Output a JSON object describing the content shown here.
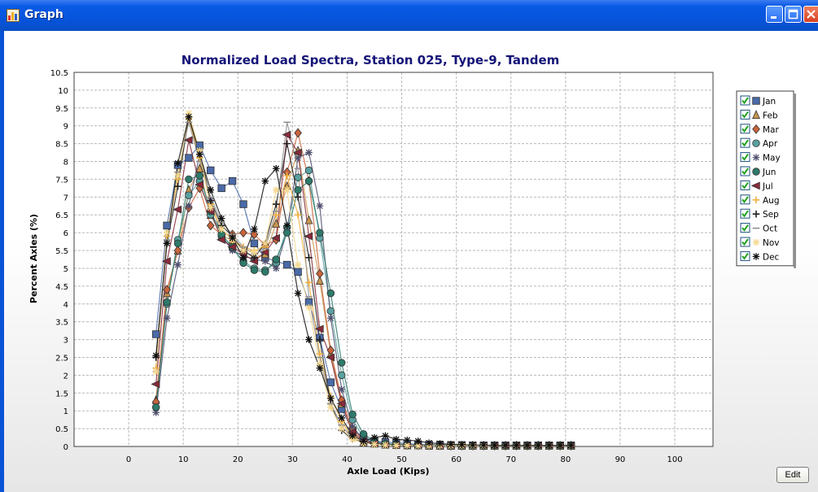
{
  "window": {
    "title": "Graph",
    "icons": [
      "chart-app-icon",
      "minimize-icon",
      "maximize-icon",
      "close-icon"
    ]
  },
  "edit_button_label": "Edit",
  "chart_data": {
    "type": "line",
    "title": "Normalized Load Spectra, Station 025, Type-9, Tandem",
    "xlabel": "Axle Load (Kips)",
    "ylabel": "Percent Axles (%)",
    "xlim": [
      -10,
      107
    ],
    "ylim": [
      0,
      10.5
    ],
    "xticks": [
      0,
      10,
      20,
      30,
      40,
      50,
      60,
      70,
      80,
      90,
      100
    ],
    "yticks": [
      0,
      0.5,
      1,
      1.5,
      2,
      2.5,
      3,
      3.5,
      4,
      4.5,
      5,
      5.5,
      6,
      6.5,
      7,
      7.5,
      8,
      8.5,
      9,
      9.5,
      10,
      10.5
    ],
    "grid": true,
    "legend_position": "right",
    "x": [
      5,
      7,
      9,
      11,
      13,
      15,
      17,
      19,
      21,
      23,
      25,
      27,
      29,
      31,
      33,
      35,
      37,
      39,
      41,
      43,
      45,
      47,
      49,
      51,
      53,
      55,
      57,
      59,
      61,
      63,
      65,
      67,
      69,
      71,
      73,
      75,
      77,
      79,
      81
    ],
    "series": [
      {
        "name": "Jan",
        "color": "#4a6aa8",
        "marker": "square",
        "values": [
          3.15,
          6.2,
          7.9,
          8.1,
          8.45,
          7.75,
          7.25,
          7.45,
          6.8,
          5.7,
          5.3,
          5.2,
          5.1,
          4.9,
          4.05,
          3.05,
          1.8,
          1.05,
          0.45,
          0.25,
          0.15,
          0.12,
          0.1,
          0.08,
          0.06,
          0.05,
          0.05,
          0.04,
          0.04,
          0.03,
          0.03,
          0.03,
          0.03,
          0.03,
          0.03,
          0.03,
          0.03,
          0.03,
          0.03
        ]
      },
      {
        "name": "Feb",
        "color": "#c89650",
        "marker": "triangle",
        "values": [
          1.3,
          4.3,
          5.5,
          7.2,
          7.8,
          6.5,
          5.9,
          5.8,
          5.5,
          5.3,
          5.4,
          6.25,
          7.3,
          8.3,
          6.35,
          4.65,
          2.6,
          1.2,
          0.35,
          0.12,
          0.08,
          0.05,
          0.04,
          0.03,
          0.03,
          0.02,
          0.02,
          0.02,
          0.02,
          0.02,
          0.02,
          0.02,
          0.02,
          0.02,
          0.02,
          0.02,
          0.02,
          0.02,
          0.02
        ]
      },
      {
        "name": "Mar",
        "color": "#c8643c",
        "marker": "diamond",
        "values": [
          1.25,
          4.4,
          5.5,
          6.7,
          7.25,
          6.2,
          5.95,
          5.95,
          6.0,
          5.95,
          5.65,
          5.8,
          7.7,
          8.8,
          7.45,
          4.85,
          2.7,
          1.3,
          0.5,
          0.15,
          0.1,
          0.06,
          0.05,
          0.04,
          0.03,
          0.03,
          0.03,
          0.02,
          0.02,
          0.02,
          0.02,
          0.02,
          0.02,
          0.02,
          0.02,
          0.02,
          0.02,
          0.02,
          0.02
        ]
      },
      {
        "name": "Apr",
        "color": "#5aa0a0",
        "marker": "circle",
        "values": [
          1.1,
          4.0,
          5.8,
          7.05,
          7.45,
          6.5,
          5.9,
          5.55,
          5.2,
          5.0,
          4.95,
          5.15,
          6.15,
          7.55,
          7.75,
          5.85,
          3.8,
          2.0,
          0.75,
          0.25,
          0.1,
          0.07,
          0.05,
          0.04,
          0.03,
          0.03,
          0.03,
          0.03,
          0.02,
          0.02,
          0.02,
          0.02,
          0.02,
          0.02,
          0.02,
          0.02,
          0.02,
          0.02,
          0.02
        ]
      },
      {
        "name": "May",
        "color": "#505070",
        "marker": "asterisk",
        "values": [
          0.95,
          3.6,
          5.1,
          6.75,
          8.2,
          6.9,
          5.9,
          5.5,
          5.35,
          5.25,
          5.2,
          5.0,
          6.05,
          8.1,
          8.25,
          6.75,
          3.6,
          1.6,
          0.55,
          0.2,
          0.1,
          0.06,
          0.05,
          0.04,
          0.03,
          0.03,
          0.03,
          0.02,
          0.02,
          0.02,
          0.02,
          0.02,
          0.02,
          0.02,
          0.02,
          0.02,
          0.02,
          0.02,
          0.02
        ]
      },
      {
        "name": "Jun",
        "color": "#2e7a6a",
        "marker": "circle",
        "values": [
          1.1,
          4.05,
          5.7,
          7.5,
          7.6,
          6.6,
          5.95,
          5.6,
          5.15,
          4.95,
          4.9,
          5.25,
          6.0,
          7.2,
          7.45,
          6.0,
          4.3,
          2.35,
          0.9,
          0.35,
          0.15,
          0.08,
          0.06,
          0.04,
          0.04,
          0.03,
          0.03,
          0.03,
          0.02,
          0.02,
          0.02,
          0.02,
          0.02,
          0.02,
          0.02,
          0.02,
          0.02,
          0.02,
          0.02
        ]
      },
      {
        "name": "Jul",
        "color": "#8a2a3a",
        "marker": "triangle-left",
        "values": [
          1.75,
          5.2,
          6.65,
          8.6,
          7.35,
          6.6,
          5.8,
          5.6,
          5.4,
          5.2,
          5.45,
          5.85,
          8.75,
          8.25,
          5.9,
          3.3,
          2.5,
          1.2,
          0.4,
          0.15,
          0.08,
          0.05,
          0.04,
          0.03,
          0.03,
          0.02,
          0.02,
          0.02,
          0.02,
          0.02,
          0.02,
          0.02,
          0.02,
          0.02,
          0.02,
          0.02,
          0.02,
          0.02,
          0.02
        ]
      },
      {
        "name": "Aug",
        "color": "#f0b040",
        "marker": "plus",
        "values": [
          2.2,
          5.9,
          7.5,
          9.2,
          8.1,
          6.8,
          6.1,
          5.8,
          5.6,
          5.5,
          5.6,
          6.5,
          7.6,
          6.5,
          4.6,
          2.6,
          1.4,
          0.7,
          0.25,
          0.1,
          0.06,
          0.04,
          0.03,
          0.03,
          0.02,
          0.02,
          0.02,
          0.02,
          0.02,
          0.02,
          0.02,
          0.02,
          0.02,
          0.02,
          0.02,
          0.02,
          0.02,
          0.02,
          0.02
        ]
      },
      {
        "name": "Sep",
        "color": "#202020",
        "marker": "plus",
        "values": [
          2.5,
          5.7,
          7.3,
          9.25,
          8.3,
          6.9,
          6.2,
          5.9,
          5.5,
          5.3,
          5.7,
          6.8,
          8.5,
          7.0,
          5.3,
          3.0,
          1.2,
          0.45,
          0.2,
          0.12,
          0.07,
          0.05,
          0.04,
          0.03,
          0.03,
          0.03,
          0.02,
          0.02,
          0.02,
          0.02,
          0.02,
          0.02,
          0.02,
          0.02,
          0.02,
          0.02,
          0.02,
          0.02,
          0.02
        ]
      },
      {
        "name": "Oct",
        "color": "#909090",
        "marker": "dash",
        "values": [
          2.1,
          5.8,
          7.7,
          9.1,
          8.0,
          7.0,
          6.3,
          5.95,
          5.6,
          5.4,
          5.55,
          6.6,
          9.1,
          7.8,
          4.2,
          2.5,
          1.2,
          0.6,
          0.2,
          0.1,
          0.06,
          0.04,
          0.03,
          0.03,
          0.02,
          0.02,
          0.02,
          0.02,
          0.02,
          0.02,
          0.02,
          0.02,
          0.02,
          0.02,
          0.02,
          0.02,
          0.02,
          0.02,
          0.02
        ]
      },
      {
        "name": "Nov",
        "color": "#f4d890",
        "marker": "asterisk",
        "values": [
          2.1,
          6.0,
          7.6,
          9.35,
          8.3,
          6.7,
          6.1,
          5.8,
          5.5,
          5.45,
          5.7,
          7.2,
          7.2,
          5.1,
          3.9,
          2.3,
          1.1,
          0.5,
          0.2,
          0.1,
          0.06,
          0.04,
          0.03,
          0.03,
          0.02,
          0.02,
          0.02,
          0.02,
          0.02,
          0.02,
          0.02,
          0.02,
          0.02,
          0.02,
          0.02,
          0.02,
          0.02,
          0.02,
          0.02
        ]
      },
      {
        "name": "Dec",
        "color": "#101010",
        "marker": "asterisk",
        "values": [
          2.55,
          5.7,
          7.95,
          9.25,
          8.2,
          7.2,
          6.4,
          5.85,
          5.3,
          6.1,
          7.45,
          7.8,
          6.2,
          4.3,
          3.0,
          2.2,
          1.35,
          0.8,
          0.3,
          0.15,
          0.25,
          0.3,
          0.2,
          0.18,
          0.15,
          0.1,
          0.08,
          0.06,
          0.05,
          0.04,
          0.04,
          0.03,
          0.03,
          0.03,
          0.03,
          0.03,
          0.03,
          0.03,
          0.03
        ]
      }
    ]
  }
}
